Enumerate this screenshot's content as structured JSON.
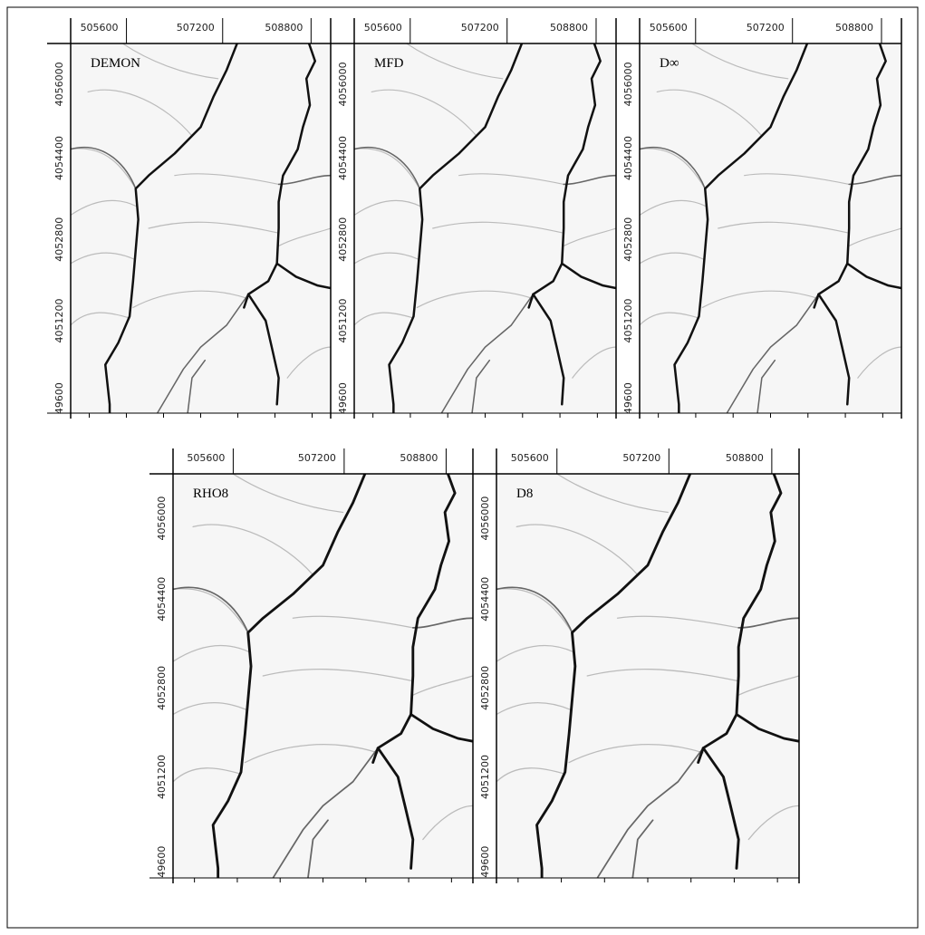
{
  "panels": [
    {
      "label": "DEMON",
      "x_tick_labels": [
        "505600",
        "507200",
        "508800"
      ],
      "y_tick_labels": [
        "4056000",
        "4054400",
        "4052800",
        "4051200",
        "49600"
      ]
    },
    {
      "label": "MFD",
      "x_tick_labels": [
        "505600",
        "507200",
        "508800"
      ],
      "y_tick_labels": [
        "4056000",
        "4054400",
        "4052800",
        "4051200",
        "49600"
      ]
    },
    {
      "label": "D∞",
      "x_tick_labels": [
        "505600",
        "507200",
        "508800"
      ],
      "y_tick_labels": [
        "4056000",
        "4054400",
        "4052800",
        "4051200",
        "49600"
      ]
    },
    {
      "label": "RHO8",
      "x_tick_labels": [
        "505600",
        "507200",
        "508800"
      ],
      "y_tick_labels": [
        "4056000",
        "4054400",
        "4052800",
        "4051200",
        "49600"
      ]
    },
    {
      "label": "D8",
      "x_tick_labels": [
        "505600",
        "507200",
        "508800"
      ],
      "y_tick_labels": [
        "4056000",
        "4054400",
        "4052800",
        "4051200",
        "49600"
      ]
    }
  ]
}
